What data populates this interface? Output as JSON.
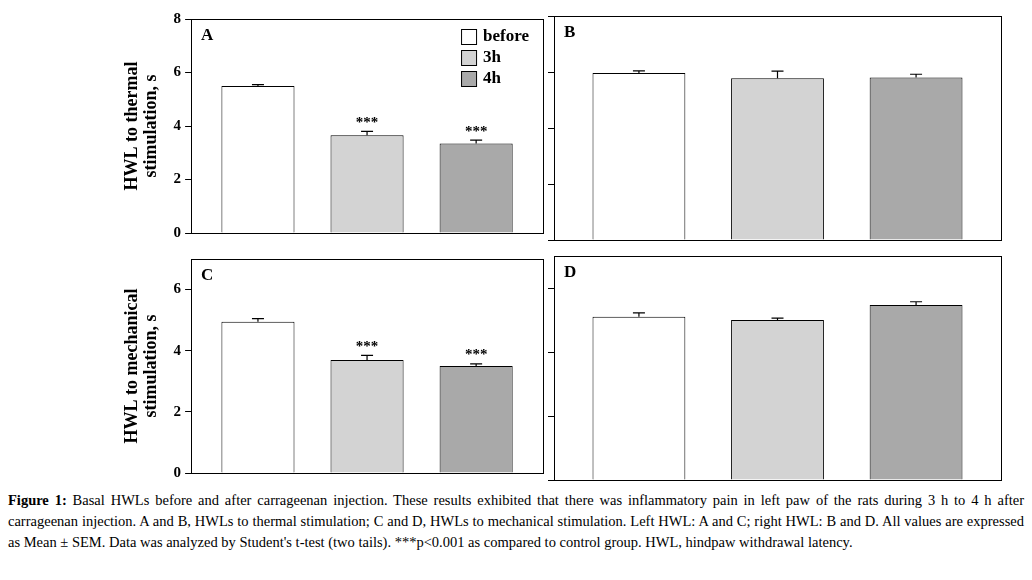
{
  "chart_data": [
    {
      "type": "bar",
      "title": "A",
      "y_label": [
        "HWL to thermal",
        "stimulation, s"
      ],
      "categories": [
        null
      ],
      "series": [
        {
          "name": "before",
          "color": "#ffffff",
          "values": [
            5.5
          ],
          "errors": [
            0.05
          ]
        },
        {
          "name": "3h",
          "color": "#d3d3d3",
          "values": [
            3.65
          ],
          "errors": [
            0.15
          ]
        },
        {
          "name": "4h",
          "color": "#a9a9a9",
          "values": [
            3.35
          ],
          "errors": [
            0.12
          ]
        }
      ],
      "annotations": [
        {
          "series": "3h",
          "text": "***"
        },
        {
          "series": "4h",
          "text": "***"
        }
      ],
      "ylim": [
        0,
        8
      ],
      "yticks": [
        0,
        2,
        4,
        6,
        8
      ],
      "grid": false,
      "legend": "top right",
      "tick_labels": "y"
    },
    {
      "type": "bar",
      "title": "B",
      "categories": [
        null
      ],
      "series": [
        {
          "name": "before",
          "color": "#ffffff",
          "values": [
            5.96
          ],
          "errors": [
            0.08
          ]
        },
        {
          "name": "3h",
          "color": "#d3d3d3",
          "values": [
            5.78
          ],
          "errors": [
            0.25
          ]
        },
        {
          "name": "4h",
          "color": "#a9a9a9",
          "values": [
            5.8
          ],
          "errors": [
            0.12
          ]
        }
      ],
      "ylim": [
        0,
        8
      ],
      "yticks": [
        0,
        2,
        4,
        6,
        8
      ],
      "grid": false,
      "tick_labels": false
    },
    {
      "type": "bar",
      "title": "C",
      "y_label": [
        "HWL to mechanical",
        "stimulation, s"
      ],
      "categories": [
        null
      ],
      "series": [
        {
          "name": "before",
          "color": "#ffffff",
          "values": [
            4.95
          ],
          "errors": [
            0.1
          ]
        },
        {
          "name": "3h",
          "color": "#d3d3d3",
          "values": [
            3.7
          ],
          "errors": [
            0.15
          ]
        },
        {
          "name": "4h",
          "color": "#a9a9a9",
          "values": [
            3.5
          ],
          "errors": [
            0.07
          ]
        }
      ],
      "annotations": [
        {
          "series": "3h",
          "text": "***"
        },
        {
          "series": "4h",
          "text": "***"
        }
      ],
      "ylim": [
        0,
        7
      ],
      "yticks": [
        0,
        2,
        4,
        6
      ],
      "grid": false,
      "tick_labels": "y"
    },
    {
      "type": "bar",
      "title": "D",
      "categories": [
        null
      ],
      "series": [
        {
          "name": "before",
          "color": "#ffffff",
          "values": [
            5.1
          ],
          "errors": [
            0.12
          ]
        },
        {
          "name": "3h",
          "color": "#d3d3d3",
          "values": [
            5.0
          ],
          "errors": [
            0.06
          ]
        },
        {
          "name": "4h",
          "color": "#a9a9a9",
          "values": [
            5.47
          ],
          "errors": [
            0.1
          ]
        }
      ],
      "ylim": [
        0,
        7
      ],
      "yticks": [
        0,
        2,
        4,
        6
      ],
      "grid": false,
      "tick_labels": false
    }
  ],
  "caption": {
    "label": "Figure 1:",
    "text": "Basal HWLs before and after carrageenan injection. These results exhibited that there was inflammatory pain in left paw of the rats during 3 h to 4 h after carrageenan injection. A and B, HWLs to thermal stimulation; C and D, HWLs to mechanical stimulation. Left HWL: A and C; right HWL: B and D. All values are expressed as Mean ± SEM. Data was analyzed by Student's t-test (two tails). ***p<0.001 as compared to control group. HWL, hindpaw withdrawal latency."
  }
}
